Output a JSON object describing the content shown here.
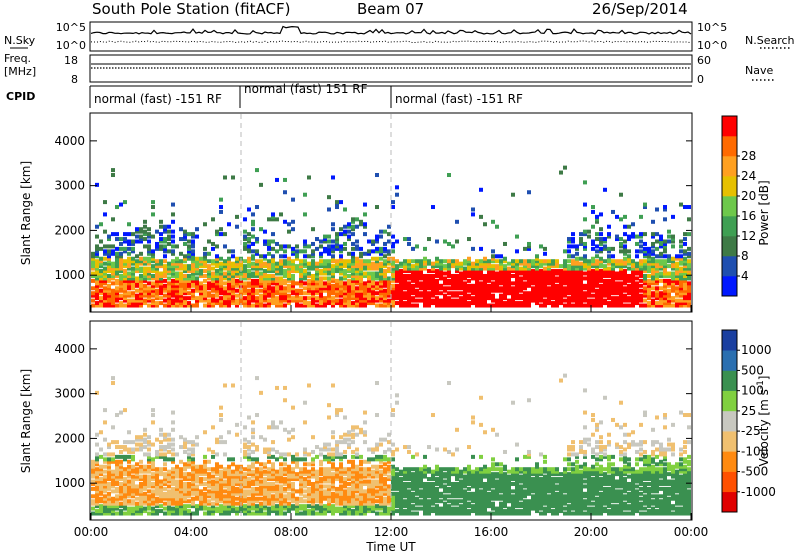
{
  "header": {
    "station": "South Pole Station (fitACF)",
    "beam": "Beam 07",
    "date": "26/Sep/2014"
  },
  "params": {
    "nsky_label": "N.Sky",
    "nsky_ticks": [
      "10^5",
      "10^0"
    ],
    "nsearch_label": "N.Search",
    "nsearch_ticks": [
      "10^5",
      "10^0"
    ],
    "freq_label_1": "Freq.",
    "freq_label_2": "[MHz]",
    "freq_ticks": [
      "18",
      "8"
    ],
    "nave_label": "Nave",
    "nave_ticks": [
      "60",
      "0"
    ],
    "cpid_label": "CPID",
    "cpid_segments": [
      "normal (fast) -151 RF",
      "normal (fast) 151 RF",
      "normal (fast) -151 RF"
    ]
  },
  "colors": {
    "power": [
      "#0018ff",
      "#1f4fb0",
      "#3e7a46",
      "#3f9f53",
      "#6dc84b",
      "#e6c000",
      "#ffa020",
      "#ff6a00",
      "#ff0000"
    ],
    "velocity": [
      "#e00000",
      "#ff5000",
      "#ff8a10",
      "#f0c070",
      "#c8c8c0",
      "#80d040",
      "#3a9050",
      "#2a6fb0",
      "#1a3fa0"
    ]
  },
  "chart_data": [
    {
      "type": "heatmap",
      "title": "",
      "xlabel": "",
      "ylabel": "Slant Range [km]",
      "x_ticks": [
        "00:00",
        "04:00",
        "08:00",
        "12:00",
        "16:00",
        "20:00",
        "00:00"
      ],
      "y_ticks": [
        "1000",
        "2000",
        "3000",
        "4000"
      ],
      "xlim": [
        0,
        24
      ],
      "ylim": [
        200,
        4600
      ],
      "colorbar": {
        "label": "Power [dB]",
        "ticks": [
          "4",
          "8",
          "12",
          "16",
          "20",
          "24",
          "28"
        ]
      }
    },
    {
      "type": "heatmap",
      "title": "",
      "xlabel": "Time UT",
      "ylabel": "Slant Range [km]",
      "x_ticks": [
        "00:00",
        "04:00",
        "08:00",
        "12:00",
        "16:00",
        "20:00",
        "00:00"
      ],
      "y_ticks": [
        "1000",
        "2000",
        "3000",
        "4000"
      ],
      "xlim": [
        0,
        24
      ],
      "ylim": [
        200,
        4600
      ],
      "colorbar": {
        "label": "Velocity [m s-1]",
        "label_main": "Velocity [m s",
        "label_sup": "-1",
        "label_end": "]",
        "ticks": [
          "1000",
          "500",
          "100",
          "25",
          "-25",
          "-100",
          "-500",
          "-1000"
        ]
      }
    }
  ]
}
